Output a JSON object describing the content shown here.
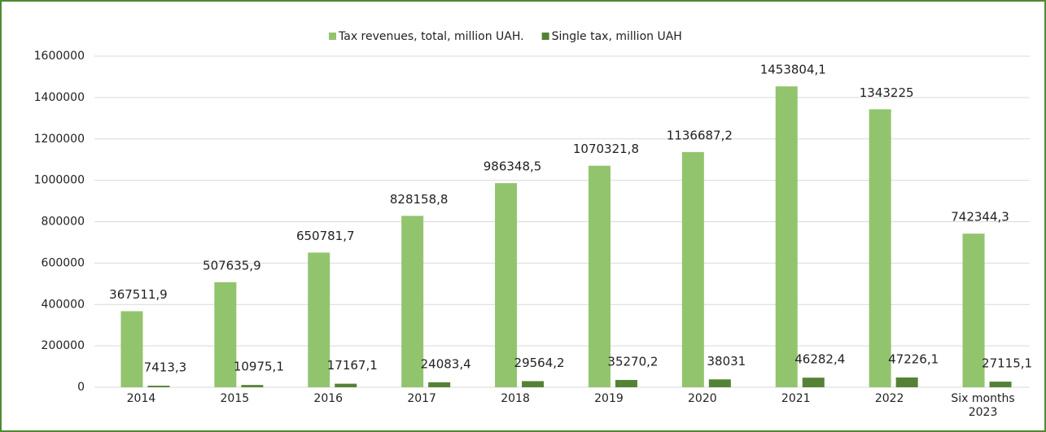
{
  "chart_data": {
    "type": "bar",
    "categories": [
      "2014",
      "2015",
      "2016",
      "2017",
      "2018",
      "2019",
      "2020",
      "2021",
      "2022",
      "Six months 2023"
    ],
    "series": [
      {
        "name": "Tax revenues, total, million UAH.",
        "color": "#92c46e",
        "values": [
          367511.9,
          507635.9,
          650781.7,
          828158.8,
          986348.5,
          1070321.8,
          1136687.2,
          1453804.1,
          1343225,
          742344.3
        ],
        "value_labels": [
          "367511,9",
          "507635,9",
          "650781,7",
          "828158,8",
          "986348,5",
          "1070321,8",
          "1136687,2",
          "1453804,1",
          "1343225",
          "742344,3"
        ]
      },
      {
        "name": "Single tax, million UAH",
        "color": "#548235",
        "values": [
          7413.3,
          10975.1,
          17167.1,
          24083.4,
          29564.2,
          35270.2,
          38031,
          46282.4,
          47226.1,
          27115.1
        ],
        "value_labels": [
          "7413,3",
          "10975,1",
          "17167,1",
          "24083,4",
          "29564,2",
          "35270,2",
          "38031",
          "46282,4",
          "47226,1",
          "27115,1"
        ]
      }
    ],
    "ylim": [
      0,
      1600000
    ],
    "yticks": [
      0,
      200000,
      400000,
      600000,
      800000,
      1000000,
      1200000,
      1400000,
      1600000
    ],
    "grid": true,
    "legend": "top"
  }
}
